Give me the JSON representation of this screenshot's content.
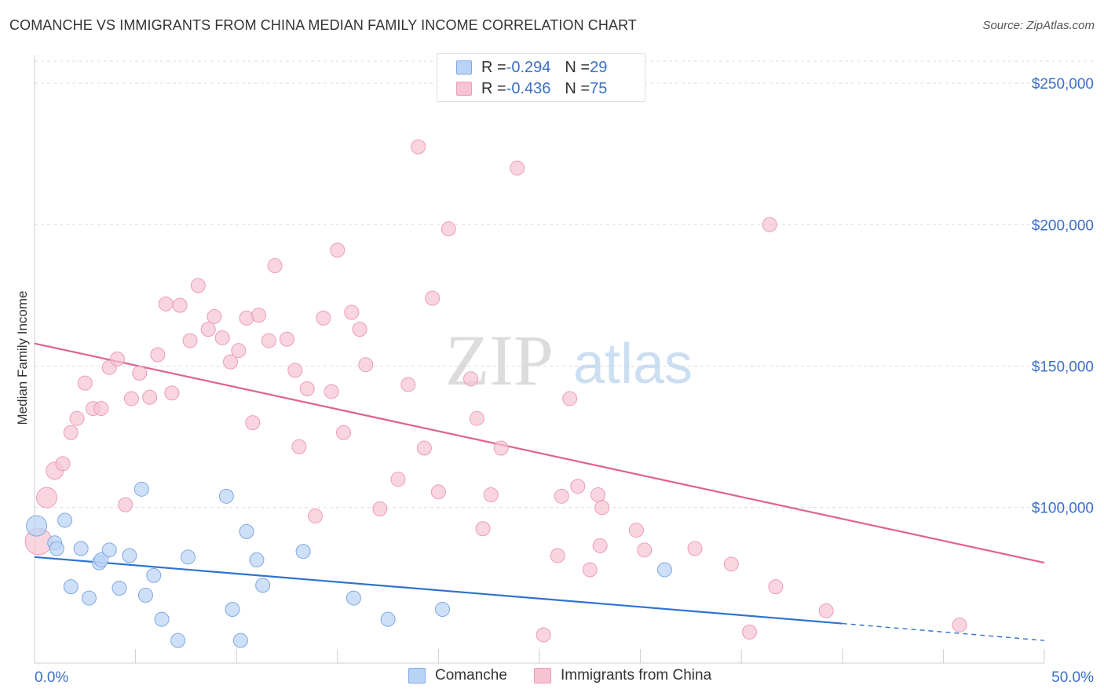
{
  "header": {
    "title": "COMANCHE VS IMMIGRANTS FROM CHINA MEDIAN FAMILY INCOME CORRELATION CHART",
    "source": "Source: ZipAtlas.com"
  },
  "watermark": {
    "zip": "ZIP",
    "atlas": "atlas"
  },
  "legend_top": {
    "rows": [
      {
        "r_label": "R = ",
        "r_value": "-0.294",
        "n_label": "N = ",
        "n_value": "29"
      },
      {
        "r_label": "R = ",
        "r_value": "-0.436",
        "n_label": "N = ",
        "n_value": "75"
      }
    ]
  },
  "colors": {
    "blue_fill": "#b9d3f5",
    "blue_stroke": "#7fa8e0",
    "blue_line": "#2f72d0",
    "pink_fill": "#f7c3d3",
    "pink_stroke": "#eb9db6",
    "pink_line": "#e0628e",
    "axis_label": "#3b6fc7",
    "grid": "#dcdcdc"
  },
  "chart_data": {
    "type": "scatter",
    "title": "COMANCHE VS IMMIGRANTS FROM CHINA MEDIAN FAMILY INCOME CORRELATION CHART",
    "xlabel": "",
    "ylabel": "Median Family Income",
    "xlim": [
      0,
      50
    ],
    "ylim": [
      45000,
      260000
    ],
    "x_tick_labels": [
      "0.0%",
      "50.0%"
    ],
    "y_ticks": [
      100000,
      150000,
      200000,
      250000
    ],
    "y_tick_labels": [
      "$100,000",
      "$150,000",
      "$200,000",
      "$250,000"
    ],
    "legend": [
      "Comanche",
      "Immigrants from China"
    ],
    "series": [
      {
        "name": "Comanche",
        "r": -0.294,
        "n": 29,
        "trend": {
          "x0": 0,
          "y0": 82500,
          "x1": 40,
          "y1": 59000,
          "dash_to_x": 50,
          "dash_to_y": 53000
        },
        "points": [
          [
            0.1,
            93500,
            13
          ],
          [
            1.0,
            87500,
            9
          ],
          [
            1.1,
            85500,
            9
          ],
          [
            1.5,
            95500,
            9
          ],
          [
            1.8,
            72000,
            9
          ],
          [
            2.3,
            85500,
            9
          ],
          [
            2.7,
            68000,
            9
          ],
          [
            3.2,
            80500,
            9
          ],
          [
            3.3,
            81500,
            9
          ],
          [
            3.7,
            85000,
            9
          ],
          [
            4.2,
            71500,
            9
          ],
          [
            4.7,
            83000,
            9
          ],
          [
            5.3,
            106500,
            9
          ],
          [
            5.5,
            69000,
            9
          ],
          [
            5.9,
            76000,
            9
          ],
          [
            6.3,
            60500,
            9
          ],
          [
            7.1,
            53000,
            9
          ],
          [
            7.6,
            82500,
            9
          ],
          [
            9.5,
            104000,
            9
          ],
          [
            9.8,
            64000,
            9
          ],
          [
            10.2,
            53000,
            9
          ],
          [
            10.5,
            91500,
            9
          ],
          [
            11.0,
            81500,
            9
          ],
          [
            11.3,
            72500,
            9
          ],
          [
            13.3,
            84500,
            9
          ],
          [
            15.8,
            68000,
            9
          ],
          [
            17.5,
            60500,
            9
          ],
          [
            20.2,
            64000,
            9
          ],
          [
            31.2,
            78000,
            9
          ]
        ]
      },
      {
        "name": "Immigrants from China",
        "r": -0.436,
        "n": 75,
        "trend": {
          "x0": 0,
          "y0": 158000,
          "x1": 50,
          "y1": 80500
        },
        "points": [
          [
            0.2,
            88000,
            17
          ],
          [
            0.6,
            103500,
            13
          ],
          [
            1.0,
            113000,
            11
          ],
          [
            1.4,
            115500,
            9
          ],
          [
            1.8,
            126500,
            9
          ],
          [
            2.1,
            131500,
            9
          ],
          [
            2.5,
            144000,
            9
          ],
          [
            2.9,
            135000,
            9
          ],
          [
            3.3,
            135000,
            9
          ],
          [
            3.7,
            149500,
            9
          ],
          [
            4.1,
            152500,
            9
          ],
          [
            4.5,
            101000,
            9
          ],
          [
            4.8,
            138500,
            9
          ],
          [
            5.2,
            147500,
            9
          ],
          [
            5.7,
            139000,
            9
          ],
          [
            6.1,
            154000,
            9
          ],
          [
            6.5,
            172000,
            9
          ],
          [
            6.8,
            140500,
            9
          ],
          [
            7.2,
            171500,
            9
          ],
          [
            7.7,
            159000,
            9
          ],
          [
            8.1,
            178500,
            9
          ],
          [
            8.6,
            163000,
            9
          ],
          [
            8.9,
            167500,
            9
          ],
          [
            9.3,
            160000,
            9
          ],
          [
            9.7,
            151500,
            9
          ],
          [
            10.1,
            155500,
            9
          ],
          [
            10.5,
            167000,
            9
          ],
          [
            10.8,
            130000,
            9
          ],
          [
            11.1,
            168000,
            9
          ],
          [
            11.6,
            159000,
            9
          ],
          [
            11.9,
            185500,
            9
          ],
          [
            12.5,
            159500,
            9
          ],
          [
            12.9,
            148500,
            9
          ],
          [
            13.1,
            121500,
            9
          ],
          [
            13.5,
            142000,
            9
          ],
          [
            13.9,
            97000,
            9
          ],
          [
            14.3,
            167000,
            9
          ],
          [
            14.7,
            141000,
            9
          ],
          [
            15.0,
            191000,
            9
          ],
          [
            15.3,
            126500,
            9
          ],
          [
            15.7,
            169000,
            9
          ],
          [
            16.1,
            163000,
            9
          ],
          [
            16.4,
            150500,
            9
          ],
          [
            17.1,
            99500,
            9
          ],
          [
            18.0,
            110000,
            9
          ],
          [
            18.5,
            143500,
            9
          ],
          [
            19.0,
            227500,
            9
          ],
          [
            19.3,
            121000,
            9
          ],
          [
            19.7,
            174000,
            9
          ],
          [
            20.0,
            105500,
            9
          ],
          [
            20.5,
            198500,
            9
          ],
          [
            21.6,
            145500,
            9
          ],
          [
            21.9,
            131500,
            9
          ],
          [
            22.2,
            92500,
            9
          ],
          [
            22.6,
            104500,
            9
          ],
          [
            23.1,
            121000,
            9
          ],
          [
            23.9,
            220000,
            9
          ],
          [
            25.2,
            55000,
            9
          ],
          [
            25.9,
            83000,
            9
          ],
          [
            26.1,
            104000,
            9
          ],
          [
            26.5,
            138500,
            9
          ],
          [
            26.9,
            107500,
            9
          ],
          [
            27.5,
            78000,
            9
          ],
          [
            27.9,
            104500,
            9
          ],
          [
            28.0,
            86500,
            9
          ],
          [
            28.1,
            100000,
            9
          ],
          [
            29.8,
            92000,
            9
          ],
          [
            30.2,
            85000,
            9
          ],
          [
            32.7,
            85500,
            9
          ],
          [
            34.5,
            80000,
            9
          ],
          [
            35.4,
            56000,
            9
          ],
          [
            36.4,
            200000,
            9
          ],
          [
            36.7,
            72000,
            9
          ],
          [
            39.2,
            63500,
            9
          ],
          [
            45.8,
            58500,
            9
          ]
        ]
      }
    ]
  }
}
